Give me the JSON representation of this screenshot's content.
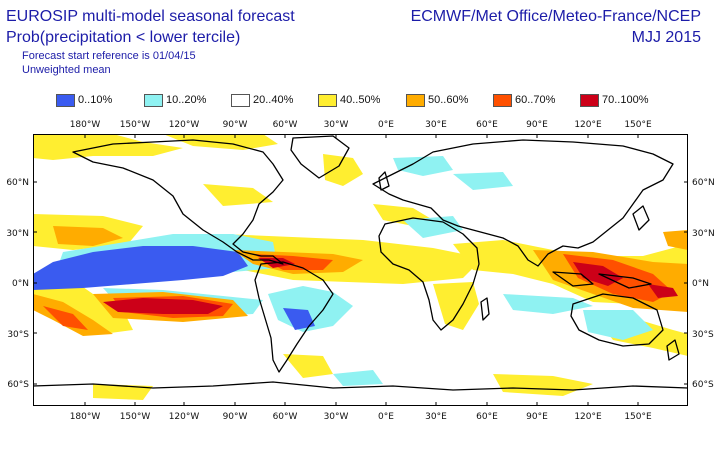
{
  "header": {
    "title_line1": "EUROSIP multi-model seasonal forecast",
    "title_line2": "Prob(precipitation < lower tercile)",
    "subtitle1": "Forecast start reference is 01/04/15",
    "subtitle2": "Unweighted mean",
    "right_line1": "ECMWF/Met Office/Meteo-France/NCEP",
    "right_line2": "MJJ 2015"
  },
  "legend": [
    {
      "label": "0..10%",
      "color": "#3a5bf0"
    },
    {
      "label": "10..20%",
      "color": "#8ff2f2"
    },
    {
      "label": "20..40%",
      "color": "#ffffff"
    },
    {
      "label": "40..50%",
      "color": "#ffee30"
    },
    {
      "label": "50..60%",
      "color": "#ffac00"
    },
    {
      "label": "60..70%",
      "color": "#ff5000"
    },
    {
      "label": "70..100%",
      "color": "#cc0018"
    }
  ],
  "axes": {
    "lon_labels": [
      "180°W",
      "150°W",
      "120°W",
      "90°W",
      "60°W",
      "30°W",
      "0°E",
      "30°E",
      "60°E",
      "90°E",
      "120°E",
      "150°E"
    ],
    "lat_labels": [
      "60°N",
      "30°N",
      "0°N",
      "30°S",
      "60°S"
    ]
  }
}
